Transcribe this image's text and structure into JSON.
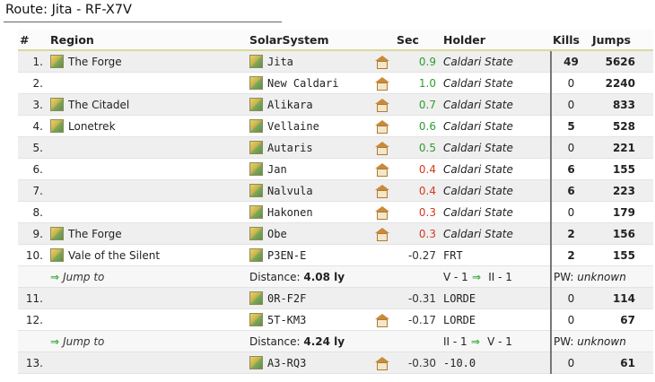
{
  "route_title": "Route: Jita - RF-X7V",
  "columns": {
    "num": "#",
    "region": "Region",
    "system": "SolarSystem",
    "sec": "Sec",
    "holder": "Holder",
    "kills": "Kills",
    "jumps": "Jumps"
  },
  "rows": [
    {
      "num": "1.",
      "region": "The Forge",
      "system": "Jita",
      "station": true,
      "sec": "0.9",
      "holder": "Caldari State",
      "kills": "49",
      "jumps": "5626"
    },
    {
      "num": "2.",
      "region": "",
      "system": "New Caldari",
      "station": true,
      "sec": "1.0",
      "holder": "Caldari State",
      "kills": "0",
      "jumps": "2240"
    },
    {
      "num": "3.",
      "region": "The Citadel",
      "system": "Alikara",
      "station": true,
      "sec": "0.7",
      "holder": "Caldari State",
      "kills": "0",
      "jumps": "833"
    },
    {
      "num": "4.",
      "region": "Lonetrek",
      "system": "Vellaine",
      "station": true,
      "sec": "0.6",
      "holder": "Caldari State",
      "kills": "5",
      "jumps": "528"
    },
    {
      "num": "5.",
      "region": "",
      "system": "Autaris",
      "station": true,
      "sec": "0.5",
      "holder": "Caldari State",
      "kills": "0",
      "jumps": "221"
    },
    {
      "num": "6.",
      "region": "",
      "system": "Jan",
      "station": true,
      "sec": "0.4",
      "holder": "Caldari State",
      "kills": "6",
      "jumps": "155"
    },
    {
      "num": "7.",
      "region": "",
      "system": "Nalvula",
      "station": true,
      "sec": "0.4",
      "holder": "Caldari State",
      "kills": "6",
      "jumps": "223"
    },
    {
      "num": "8.",
      "region": "",
      "system": "Hakonen",
      "station": true,
      "sec": "0.3",
      "holder": "Caldari State",
      "kills": "0",
      "jumps": "179"
    },
    {
      "num": "9.",
      "region": "The Forge",
      "system": "Obe",
      "station": true,
      "sec": "0.3",
      "holder": "Caldari State",
      "kills": "2",
      "jumps": "156"
    },
    {
      "num": "10.",
      "region": "Vale of the Silent",
      "system": "P3EN-E",
      "station": false,
      "sec": "-0.27",
      "holder": "FRT",
      "kills": "2",
      "jumps": "155"
    },
    {
      "num": "11.",
      "region": "",
      "system": "0R-F2F",
      "station": false,
      "sec": "-0.31",
      "holder": "LORDE",
      "kills": "0",
      "jumps": "114"
    },
    {
      "num": "12.",
      "region": "",
      "system": "5T-KM3",
      "station": true,
      "sec": "-0.17",
      "holder": "LORDE",
      "kills": "0",
      "jumps": "67"
    },
    {
      "num": "13.",
      "region": "",
      "system": "A3-RQ3",
      "station": true,
      "sec": "-0.30",
      "holder": "-10.0",
      "kills": "0",
      "jumps": "61"
    }
  ],
  "jumps": [
    {
      "label": "Jump to",
      "distance_label": "Distance:",
      "distance": "4.08 ly",
      "from_idx": "V - 1",
      "to_idx": "II - 1",
      "pw_label": "PW:",
      "pw": "unknown"
    },
    {
      "label": "Jump to",
      "distance_label": "Distance:",
      "distance": "4.24 ly",
      "from_idx": "II - 1",
      "to_idx": "V - 1",
      "pw_label": "PW:",
      "pw": "unknown"
    }
  ],
  "colors": {
    "sec_high": "#2e9e2e",
    "sec_low": "#d23b1f",
    "accent_arrow": "#3fae3f"
  }
}
